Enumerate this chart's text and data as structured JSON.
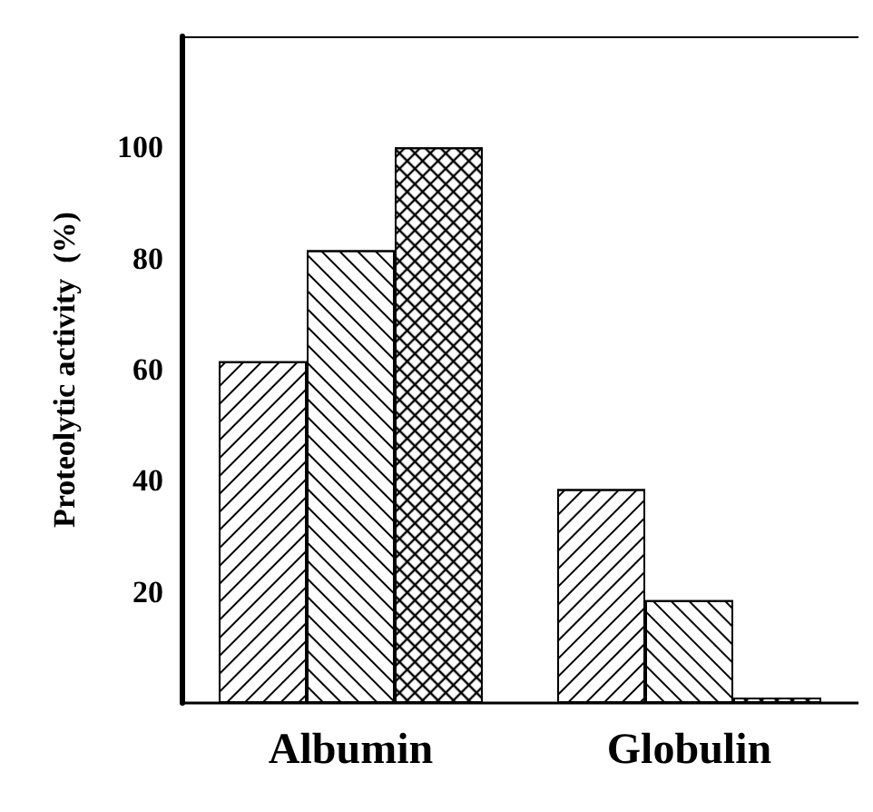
{
  "chart_data": {
    "type": "bar",
    "ylabel": "Proteolytic activity  (%)",
    "categories": [
      "Albumin",
      "Globulin"
    ],
    "series": [
      {
        "color": "#ffffff",
        "values": [
          61.5,
          38.5
        ]
      },
      {
        "color": "#ffffff",
        "values": [
          81.5,
          18.5
        ]
      },
      {
        "color": "#ffffff",
        "values": [
          100,
          1
        ]
      }
    ],
    "ylim": [
      0,
      120
    ],
    "yticks": [
      20,
      40,
      60,
      80,
      100
    ],
    "grid": false
  }
}
